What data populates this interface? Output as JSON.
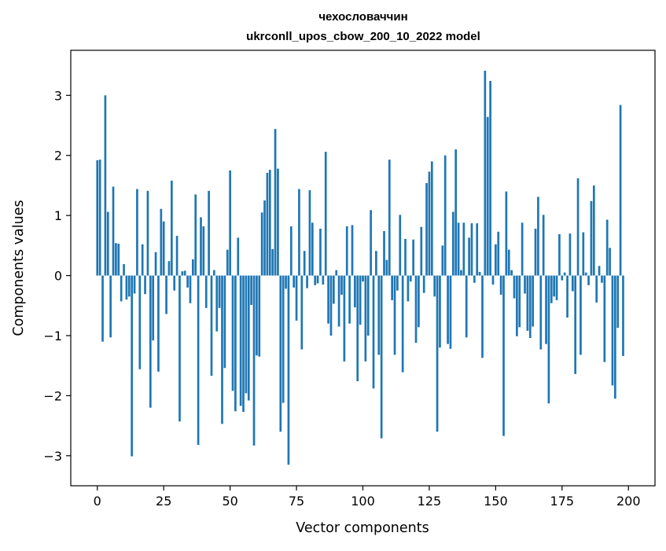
{
  "chart_data": {
    "type": "bar",
    "title_line1": "чехословаччин",
    "title_line2": "ukrconll_upos_cbow_200_10_2022 model",
    "xlabel": "Vector components",
    "ylabel": "Components values",
    "xlim": [
      -10,
      210
    ],
    "ylim": [
      -3.5,
      3.75
    ],
    "xticks": [
      0,
      25,
      50,
      75,
      100,
      125,
      150,
      175,
      200
    ],
    "yticks": [
      -3,
      -2,
      -1,
      0,
      1,
      2,
      3
    ],
    "ytick_labels": [
      "−3",
      "−2",
      "−1",
      "0",
      "1",
      "2",
      "3"
    ],
    "grid": false,
    "bar_color": "#1f77b4",
    "values": [
      1.92,
      1.93,
      -1.1,
      3.0,
      1.06,
      -1.03,
      1.48,
      0.54,
      0.53,
      -0.43,
      0.19,
      -0.4,
      -0.35,
      -3.01,
      -0.3,
      1.44,
      -1.56,
      0.52,
      -0.31,
      1.41,
      -2.2,
      -1.08,
      0.39,
      -1.6,
      1.11,
      0.9,
      -0.64,
      0.24,
      1.58,
      -0.25,
      0.66,
      -2.43,
      0.07,
      0.08,
      -0.2,
      -0.46,
      0.27,
      1.35,
      -2.82,
      0.97,
      0.82,
      -0.54,
      1.41,
      -1.67,
      0.09,
      -0.93,
      -0.54,
      -2.47,
      -1.54,
      0.43,
      1.75,
      -1.92,
      -2.26,
      0.63,
      -2.17,
      -2.27,
      -1.96,
      -2.08,
      -0.49,
      -2.83,
      -1.33,
      -1.35,
      1.05,
      1.25,
      1.71,
      1.76,
      0.44,
      2.44,
      1.78,
      -2.6,
      -2.12,
      -0.22,
      -3.15,
      0.82,
      -0.2,
      -0.75,
      1.44,
      -1.23,
      0.41,
      -0.21,
      1.42,
      0.88,
      -0.16,
      -0.13,
      0.78,
      -0.15,
      2.06,
      -0.8,
      -1.0,
      -0.47,
      0.09,
      -0.85,
      -0.32,
      -1.43,
      0.82,
      -0.8,
      0.84,
      -0.53,
      -1.76,
      -0.82,
      -0.1,
      -1.43,
      -1.0,
      1.09,
      -1.88,
      0.41,
      -1.32,
      -2.71,
      0.74,
      0.26,
      1.93,
      -0.41,
      -1.32,
      -0.25,
      1.01,
      -1.61,
      0.61,
      -0.43,
      -0.1,
      0.6,
      -1.12,
      -0.86,
      0.81,
      -0.29,
      1.54,
      1.73,
      1.9,
      -0.35,
      -2.6,
      -1.2,
      0.5,
      2.0,
      -1.14,
      -1.22,
      1.06,
      2.1,
      0.88,
      0.09,
      0.88,
      -1.03,
      0.63,
      0.87,
      -0.12,
      0.87,
      0.06,
      -1.37,
      3.41,
      2.64,
      3.24,
      -0.15,
      0.52,
      0.73,
      -0.32,
      -2.67,
      1.4,
      0.43,
      0.09,
      -0.38,
      -1.01,
      -0.86,
      0.88,
      -0.3,
      -0.92,
      -1.04,
      -0.85,
      0.78,
      1.31,
      -1.23,
      1.01,
      -1.14,
      -2.13,
      -0.46,
      -0.35,
      -0.41,
      0.69,
      -0.08,
      0.05,
      -0.7,
      0.7,
      -0.26,
      -1.64,
      1.62,
      -1.32,
      0.72,
      0.05,
      -0.16,
      1.24,
      1.5,
      -0.45,
      0.16,
      -0.12,
      -1.44,
      0.93,
      0.46,
      -1.83,
      -2.05,
      -0.87,
      2.84,
      -1.34
    ]
  }
}
